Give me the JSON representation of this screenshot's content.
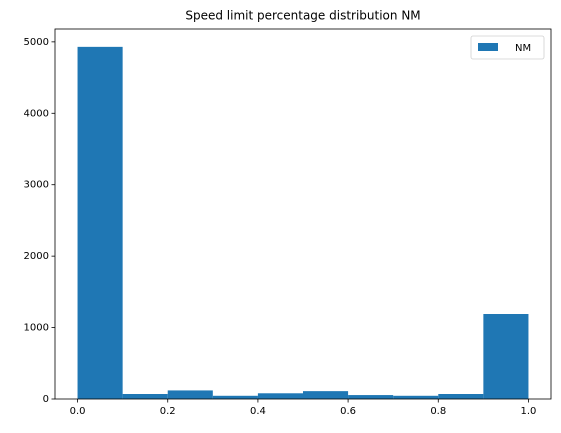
{
  "chart_data": {
    "type": "histogram",
    "title": "Speed limit percentage distribution NM",
    "bins": [
      0,
      0.1,
      0.2,
      0.3,
      0.4,
      0.5,
      0.6,
      0.7,
      0.8,
      0.9,
      1.0
    ],
    "series": [
      {
        "name": "NM",
        "color": "#1f77b4",
        "values": [
          4930,
          70,
          120,
          45,
          80,
          110,
          55,
          45,
          70,
          1190
        ]
      }
    ],
    "xlim": [
      -0.05,
      1.05
    ],
    "ylim": [
      0,
      5180
    ],
    "xticks": [
      {
        "value": 0,
        "label": "0.0"
      },
      {
        "value": 0.2,
        "label": "0.2"
      },
      {
        "value": 0.4,
        "label": "0.4"
      },
      {
        "value": 0.6,
        "label": "0.6"
      },
      {
        "value": 0.8,
        "label": "0.8"
      },
      {
        "value": 1,
        "label": "1.0"
      }
    ],
    "yticks": [
      0,
      1000,
      2000,
      3000,
      4000,
      5000
    ],
    "grid": false,
    "legend": "upper right"
  }
}
